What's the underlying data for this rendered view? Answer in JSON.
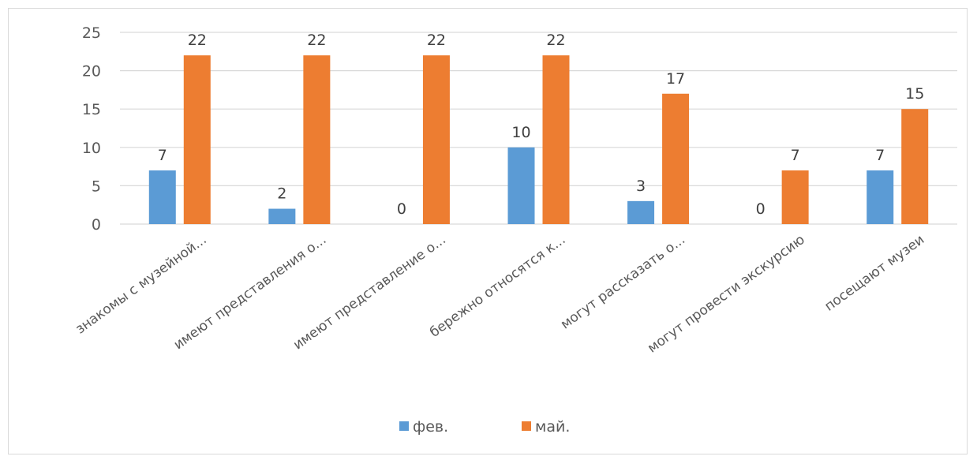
{
  "chart_data": {
    "type": "bar",
    "categories": [
      "знакомы с музейной...",
      "имеют представления о...",
      "имеют представление о...",
      "бережно относятся к...",
      "могут рассказать о...",
      "могут провести экскурсию",
      "посещают музеи"
    ],
    "series": [
      {
        "name": "фев.",
        "values": [
          7,
          2,
          0,
          10,
          3,
          0,
          7
        ],
        "color": "#5b9bd5"
      },
      {
        "name": "май.",
        "values": [
          22,
          22,
          22,
          22,
          17,
          7,
          15
        ],
        "color": "#ed7d31"
      }
    ],
    "yticks": [
      "0",
      "5",
      "10",
      "15",
      "20",
      "25"
    ],
    "ylim": [
      0,
      25
    ],
    "grid": true,
    "legend": "bottom",
    "data_labels": true,
    "gridline_color": "#d9d9d9"
  }
}
